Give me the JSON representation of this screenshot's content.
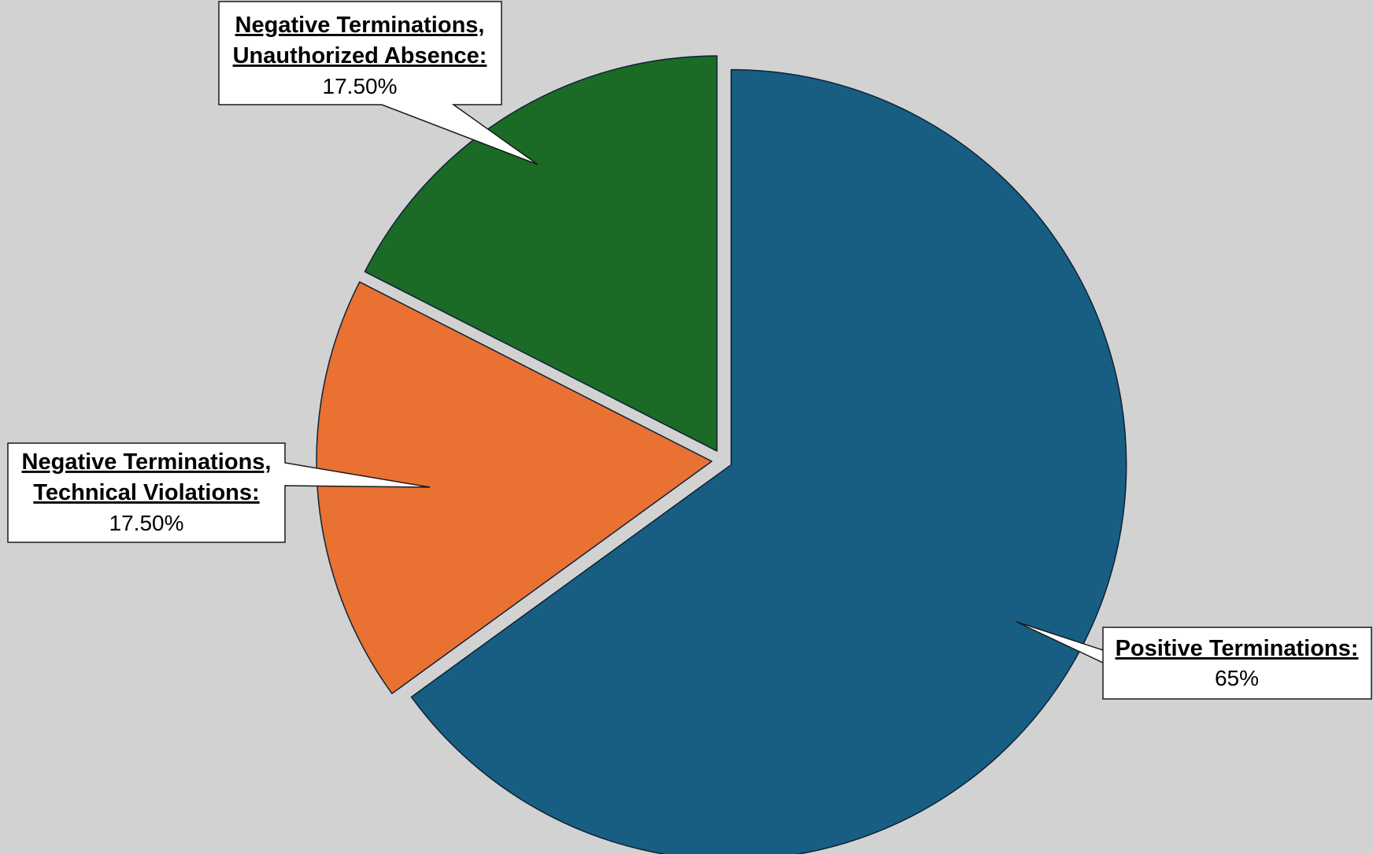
{
  "chart_data": {
    "type": "pie",
    "title": "",
    "slices": [
      {
        "label_lines": [
          "Positive Terminations:"
        ],
        "value": 65,
        "value_label": "65%",
        "color": "#175e82"
      },
      {
        "label_lines": [
          "Negative Terminations,",
          "Technical Violations:"
        ],
        "value": 17.5,
        "value_label": "17.50%",
        "color": "#e97132"
      },
      {
        "label_lines": [
          "Negative Terminations,",
          "Unauthorized Absence:"
        ],
        "value": 17.5,
        "value_label": "17.50%",
        "color": "#1b6a25"
      }
    ],
    "legend": "none",
    "data_labels": "callouts",
    "start_angle": "12 o'clock",
    "direction": "clockwise",
    "exploded": true
  },
  "colors": {
    "background": "#d2d2d2",
    "slice_outline": "#0d2236",
    "callout_fill": "#ffffff",
    "callout_border": "#1a1a1a"
  }
}
